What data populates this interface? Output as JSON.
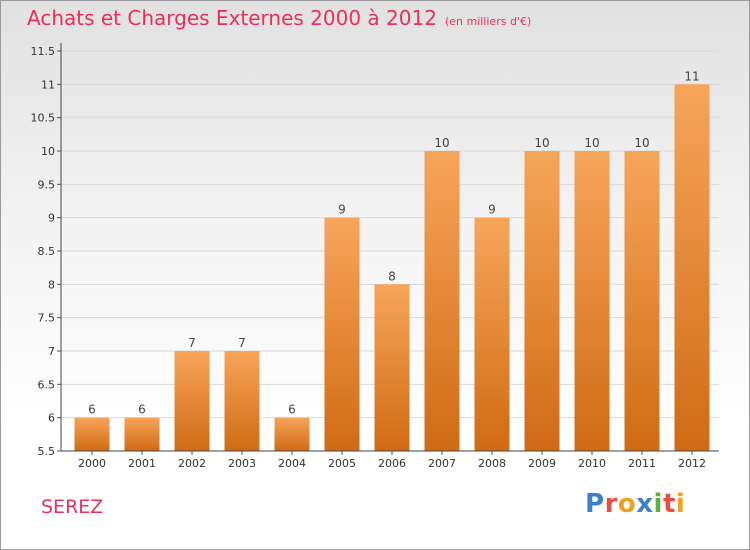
{
  "header": {
    "title": "Achats et Charges Externes 2000 à 2012",
    "unit": "(en milliers d'€)"
  },
  "footer": {
    "commune": "SEREZ",
    "logo": "Proxiti"
  },
  "colors": {
    "title": "#e9305a",
    "bar_top": "#f7a55a",
    "bar_bottom": "#d06b14",
    "grid": "#d8d8d8"
  },
  "chart_data": {
    "type": "bar",
    "title": "Achats et Charges Externes 2000 à 2012",
    "subtitle": "(en milliers d'€)",
    "categories": [
      "2000",
      "2001",
      "2002",
      "2003",
      "2004",
      "2005",
      "2006",
      "2007",
      "2008",
      "2009",
      "2010",
      "2011",
      "2012"
    ],
    "values": [
      6,
      6,
      7,
      7,
      6,
      9,
      8,
      10,
      9,
      10,
      10,
      10,
      11
    ],
    "data_labels": [
      "6",
      "6",
      "7",
      "7",
      "6",
      "9",
      "8",
      "10",
      "9",
      "10",
      "10",
      "10",
      "11"
    ],
    "ylim": [
      5.5,
      11.5
    ],
    "y_ticks": [
      "5.5",
      "6",
      "6.5",
      "7",
      "7.5",
      "8",
      "8.5",
      "9",
      "9.5",
      "10",
      "10.5",
      "11",
      "11.5"
    ],
    "grid": true,
    "legend": false,
    "xlabel": "",
    "ylabel": ""
  }
}
